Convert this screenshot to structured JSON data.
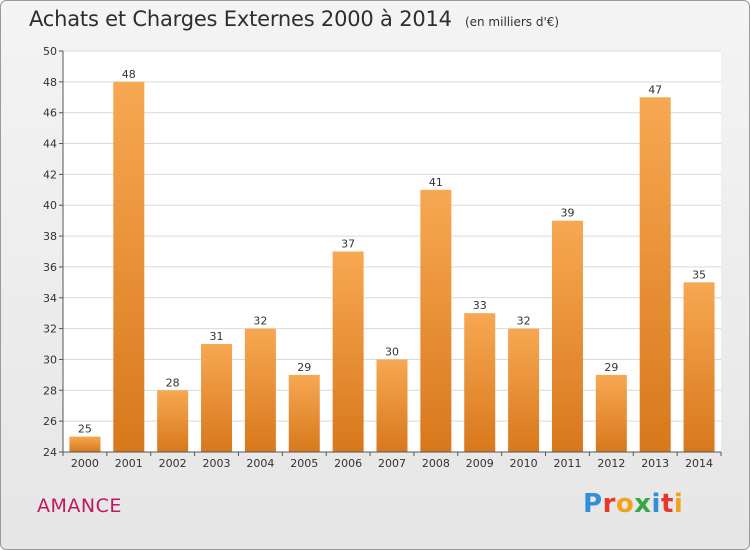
{
  "header": {
    "title": "Achats et Charges Externes 2000 à 2014",
    "unit": "(en milliers d'€)"
  },
  "footer": {
    "city": "AMANCE",
    "logo_letters": [
      "P",
      "r",
      "o",
      "x",
      "i",
      "t",
      "i"
    ],
    "logo_colors": [
      "#2f8fd8",
      "#e5382d",
      "#f2a31b",
      "#36a845",
      "#2f8fd8",
      "#e5382d",
      "#f2a31b"
    ]
  },
  "chart_data": {
    "type": "bar",
    "title": "Achats et Charges Externes 2000 à 2014",
    "subtitle": "(en milliers d'€)",
    "categories": [
      "2000",
      "2001",
      "2002",
      "2003",
      "2004",
      "2005",
      "2006",
      "2007",
      "2008",
      "2009",
      "2010",
      "2011",
      "2012",
      "2013",
      "2014"
    ],
    "values": [
      25,
      48,
      28,
      31,
      32,
      29,
      37,
      30,
      41,
      33,
      32,
      39,
      29,
      47,
      35
    ],
    "ylim": [
      24,
      50
    ],
    "yticks": [
      24,
      26,
      28,
      30,
      32,
      34,
      36,
      38,
      40,
      42,
      44,
      46,
      48,
      50
    ],
    "grid": true,
    "bar_color_top": "#f7a852",
    "bar_color_bottom": "#d8781c"
  }
}
